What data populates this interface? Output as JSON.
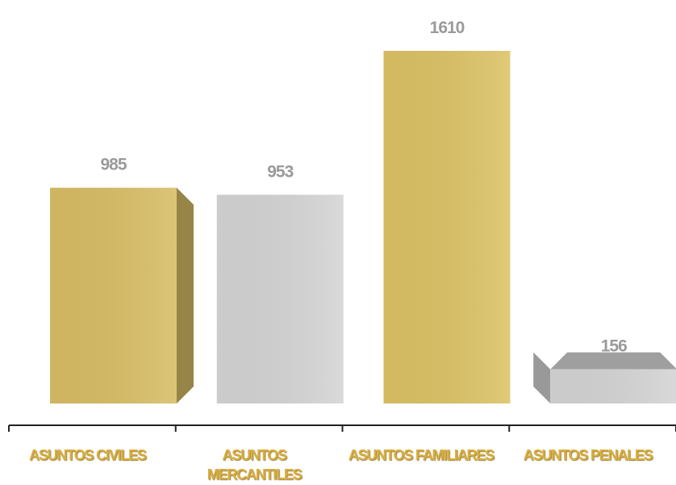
{
  "chart_data": {
    "type": "bar",
    "categories": [
      "ASUNTOS  CIVILES",
      "ASUNTOS MERCANTILES",
      "ASUNTOS FAMILIARES",
      "ASUNTOS PENALES"
    ],
    "values": [
      985,
      953,
      1610,
      156
    ],
    "colors": [
      "#d8bd65",
      "#d4d4d4",
      "#dcc265",
      "#d4d4d4"
    ]
  }
}
